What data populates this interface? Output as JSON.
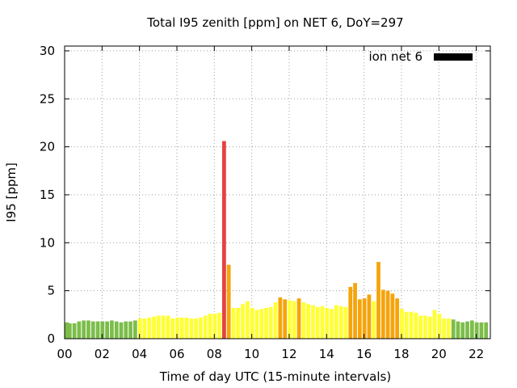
{
  "chart_data": {
    "type": "bar",
    "title": "Total I95 zenith [ppm] on NET 6, DoY=297",
    "xlabel": "Time of day UTC (15-minute intervals)",
    "ylabel": "I95 [ppm]",
    "ylim": [
      0,
      30.5
    ],
    "yticks": [
      0,
      5,
      10,
      15,
      20,
      25,
      30
    ],
    "xlim": [
      0,
      22.75
    ],
    "xticks": [
      "00",
      "02",
      "04",
      "06",
      "08",
      "10",
      "12",
      "14",
      "16",
      "18",
      "20",
      "22"
    ],
    "grid": true,
    "legend": {
      "label": "ion net 6",
      "position": "top-right",
      "color": "#000000"
    },
    "interval_hours": 0.25,
    "colors": {
      "low": "#7cbd4a",
      "mid": "#ffff33",
      "high": "#f5a40c",
      "extreme": "#e84040"
    },
    "values": [
      1.7,
      1.6,
      1.6,
      1.8,
      1.9,
      1.9,
      1.8,
      1.8,
      1.8,
      1.8,
      1.9,
      1.8,
      1.7,
      1.8,
      1.8,
      1.9,
      2.1,
      2.1,
      2.2,
      2.3,
      2.4,
      2.4,
      2.4,
      2.1,
      2.2,
      2.2,
      2.2,
      2.1,
      2.1,
      2.2,
      2.4,
      2.6,
      2.6,
      2.7,
      20.6,
      7.7,
      3.2,
      3.2,
      3.6,
      3.9,
      3.2,
      3.0,
      3.1,
      3.2,
      3.3,
      3.8,
      4.3,
      4.1,
      4.0,
      3.9,
      4.2,
      3.8,
      3.6,
      3.5,
      3.3,
      3.4,
      3.2,
      3.1,
      3.5,
      3.4,
      3.3,
      5.4,
      5.8,
      4.1,
      4.2,
      4.6,
      3.9,
      8.0,
      5.1,
      5.0,
      4.7,
      4.2,
      3.1,
      2.8,
      2.8,
      2.7,
      2.4,
      2.4,
      2.3,
      3.0,
      2.6,
      2.1,
      2.1,
      2.0,
      1.8,
      1.7,
      1.8,
      1.9,
      1.7,
      1.7,
      1.7
    ],
    "levels": [
      "low",
      "low",
      "low",
      "low",
      "low",
      "low",
      "low",
      "low",
      "low",
      "low",
      "low",
      "low",
      "low",
      "low",
      "low",
      "low",
      "mid",
      "mid",
      "mid",
      "mid",
      "mid",
      "mid",
      "mid",
      "mid",
      "mid",
      "mid",
      "mid",
      "mid",
      "mid",
      "mid",
      "mid",
      "mid",
      "mid",
      "mid",
      "extreme",
      "high",
      "mid",
      "mid",
      "mid",
      "mid",
      "mid",
      "mid",
      "mid",
      "mid",
      "mid",
      "mid",
      "high",
      "high",
      "mid",
      "mid",
      "high",
      "mid",
      "mid",
      "mid",
      "mid",
      "mid",
      "mid",
      "mid",
      "mid",
      "mid",
      "mid",
      "high",
      "high",
      "high",
      "high",
      "high",
      "mid",
      "high",
      "high",
      "high",
      "high",
      "high",
      "mid",
      "mid",
      "mid",
      "mid",
      "mid",
      "mid",
      "mid",
      "mid",
      "mid",
      "mid",
      "mid",
      "low",
      "low",
      "low",
      "low",
      "low",
      "low",
      "low",
      "low"
    ]
  }
}
